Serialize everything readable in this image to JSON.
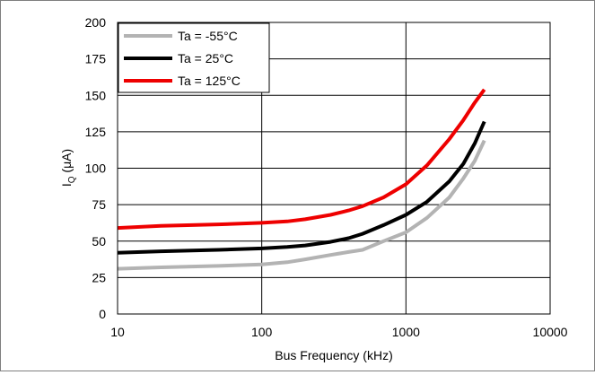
{
  "chart_data": {
    "type": "line",
    "xscale": "log",
    "xlim": [
      10,
      10000
    ],
    "ylim": [
      0,
      200
    ],
    "xticks": [
      10,
      100,
      1000,
      10000
    ],
    "xtick_labels": [
      "10",
      "100",
      "1000",
      "10000"
    ],
    "yticks": [
      0,
      25,
      50,
      75,
      100,
      125,
      150,
      175,
      200
    ],
    "ytick_labels": [
      "0",
      "25",
      "50",
      "75",
      "100",
      "125",
      "150",
      "175",
      "200"
    ],
    "grid": true,
    "legend_position": "top-left",
    "xlabel": "Bus Frequency (kHz)",
    "ylabel": {
      "main": "I",
      "sub": "Q",
      "unit": " (μA)"
    },
    "series": [
      {
        "name": "Ta = -55°C",
        "color": "#b3b3b3",
        "x": [
          10,
          20,
          50,
          100,
          150,
          200,
          300,
          400,
          500,
          700,
          1000,
          1400,
          2000,
          2500,
          3000,
          3500
        ],
        "y": [
          31,
          32,
          33,
          34,
          35.5,
          37.5,
          40.5,
          42.5,
          44,
          50,
          56,
          66,
          80,
          93,
          105,
          119
        ]
      },
      {
        "name": "Ta = 25°C",
        "color": "#000000",
        "x": [
          10,
          20,
          50,
          100,
          150,
          200,
          300,
          400,
          500,
          700,
          1000,
          1400,
          2000,
          2500,
          3000,
          3500
        ],
        "y": [
          42,
          43,
          44,
          45,
          46,
          47,
          49.5,
          52,
          55,
          61,
          68,
          77,
          91,
          103,
          117,
          132
        ]
      },
      {
        "name": "Ta = 125°C",
        "color": "#ee0000",
        "x": [
          10,
          20,
          50,
          100,
          150,
          200,
          300,
          400,
          500,
          700,
          1000,
          1400,
          2000,
          2500,
          3000,
          3500
        ],
        "y": [
          59,
          60.5,
          61.5,
          62.5,
          63.5,
          65,
          68,
          71,
          74,
          80,
          89,
          102,
          120,
          133,
          145,
          154
        ]
      }
    ]
  }
}
